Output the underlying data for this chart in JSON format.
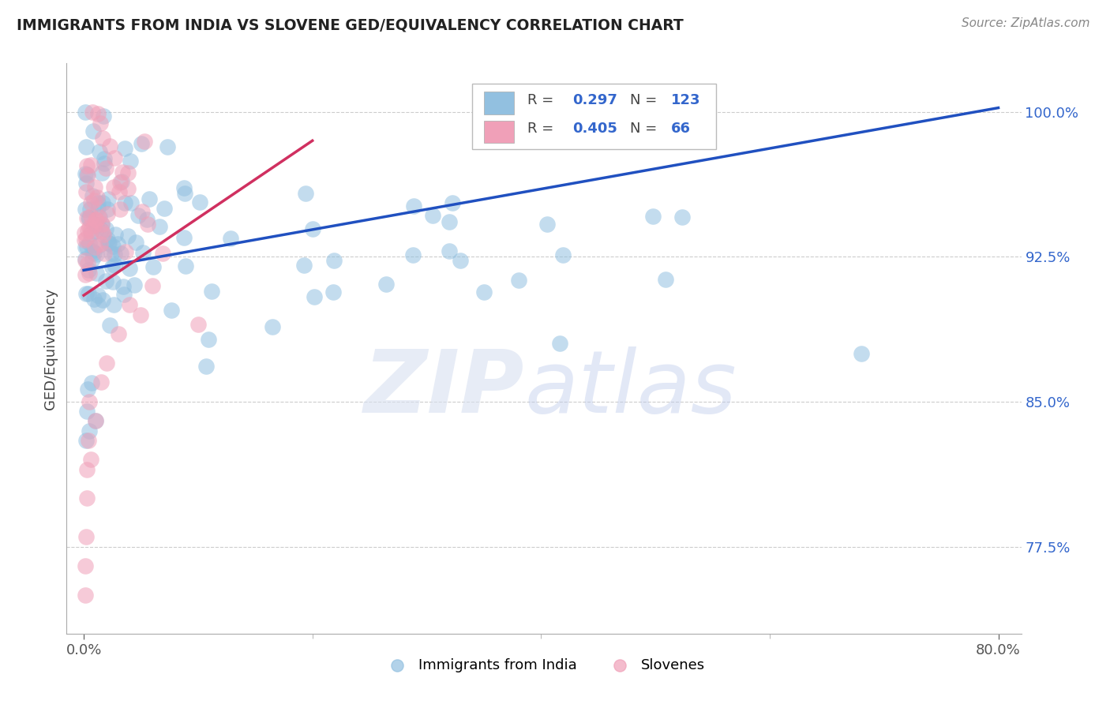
{
  "title": "IMMIGRANTS FROM INDIA VS SLOVENE GED/EQUIVALENCY CORRELATION CHART",
  "source": "Source: ZipAtlas.com",
  "ylabel_label": "GED/Equivalency",
  "y_ticks": [
    77.5,
    85.0,
    92.5,
    100.0
  ],
  "y_tick_labels": [
    "77.5%",
    "85.0%",
    "92.5%",
    "100.0%"
  ],
  "xlim": [
    -1.5,
    82
  ],
  "ylim": [
    73.0,
    102.5
  ],
  "blue_color": "#92C0E0",
  "pink_color": "#F0A0B8",
  "line_blue": "#2050C0",
  "line_pink": "#D03060",
  "tick_color": "#3366CC",
  "grid_color": "#CCCCCC",
  "blue_line_x0": 0,
  "blue_line_y0": 91.8,
  "blue_line_x1": 80,
  "blue_line_y1": 100.2,
  "pink_line_x0": 0,
  "pink_line_y0": 90.5,
  "pink_line_x1": 20,
  "pink_line_y1": 98.5
}
